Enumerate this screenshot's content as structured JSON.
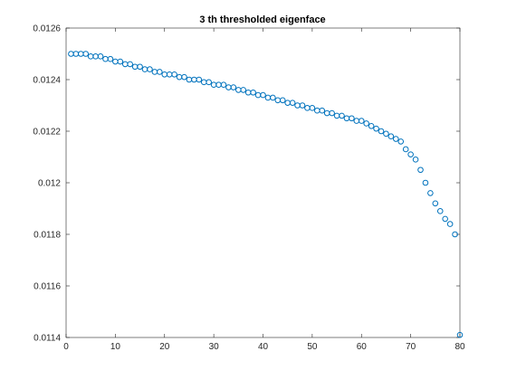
{
  "chart_data": {
    "type": "scatter",
    "title": "3 th thresholded eigenface",
    "xlabel": "",
    "ylabel": "",
    "xlim": [
      0,
      80
    ],
    "ylim": [
      0.0114,
      0.0126
    ],
    "x_ticks": [
      "0",
      "10",
      "20",
      "30",
      "40",
      "50",
      "60",
      "70",
      "80"
    ],
    "y_ticks": [
      "0.0114",
      "0.0116",
      "0.0118",
      "0.012",
      "0.0122",
      "0.0124",
      "0.0126"
    ],
    "grid": false,
    "legend": "none",
    "marker": "circle-open",
    "marker_color": "#0072BD",
    "x": [
      1,
      2,
      3,
      4,
      5,
      6,
      7,
      8,
      9,
      10,
      11,
      12,
      13,
      14,
      15,
      16,
      17,
      18,
      19,
      20,
      21,
      22,
      23,
      24,
      25,
      26,
      27,
      28,
      29,
      30,
      31,
      32,
      33,
      34,
      35,
      36,
      37,
      38,
      39,
      40,
      41,
      42,
      43,
      44,
      45,
      46,
      47,
      48,
      49,
      50,
      51,
      52,
      53,
      54,
      55,
      56,
      57,
      58,
      59,
      60,
      61,
      62,
      63,
      64,
      65,
      66,
      67,
      68,
      69,
      70,
      71,
      72,
      73,
      74,
      75,
      76,
      77,
      78,
      79,
      80
    ],
    "y": [
      0.0125,
      0.0125,
      0.0125,
      0.0125,
      0.01249,
      0.01249,
      0.01249,
      0.01248,
      0.01248,
      0.01247,
      0.01247,
      0.01246,
      0.01246,
      0.01245,
      0.01245,
      0.01244,
      0.01244,
      0.01243,
      0.01243,
      0.01242,
      0.01242,
      0.01242,
      0.01241,
      0.01241,
      0.0124,
      0.0124,
      0.0124,
      0.01239,
      0.01239,
      0.01238,
      0.01238,
      0.01238,
      0.01237,
      0.01237,
      0.01236,
      0.01236,
      0.01235,
      0.01235,
      0.01234,
      0.01234,
      0.01233,
      0.01233,
      0.01232,
      0.01232,
      0.01231,
      0.01231,
      0.0123,
      0.0123,
      0.01229,
      0.01229,
      0.01228,
      0.01228,
      0.01227,
      0.01227,
      0.01226,
      0.01226,
      0.01225,
      0.01225,
      0.01224,
      0.01224,
      0.01223,
      0.01222,
      0.01221,
      0.0122,
      0.01219,
      0.01218,
      0.01217,
      0.01216,
      0.01213,
      0.01211,
      0.01209,
      0.01205,
      0.012,
      0.01196,
      0.01192,
      0.01189,
      0.01186,
      0.01184,
      0.0118,
      0.01141
    ]
  }
}
